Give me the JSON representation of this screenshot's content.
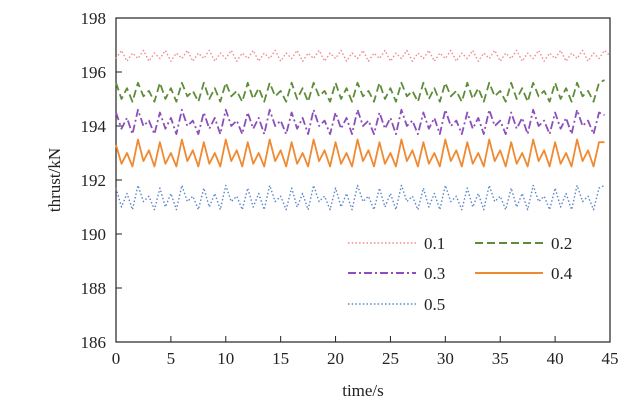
{
  "chart_data": {
    "type": "line",
    "xlabel": "time/s",
    "ylabel": "thrust/kN",
    "xlim": [
      0,
      45
    ],
    "ylim": [
      186,
      198
    ],
    "xticks": [
      0,
      5,
      10,
      15,
      20,
      25,
      30,
      35,
      40,
      45
    ],
    "yticks": [
      186,
      188,
      190,
      192,
      194,
      196,
      198
    ],
    "grid": false,
    "legend_position": "lower-right",
    "x_step": 0.5,
    "series": [
      {
        "name": "0.1",
        "color": "#f08a8a",
        "dash": "dotted",
        "values": [
          196.5,
          196.8,
          196.4,
          196.7,
          196.5,
          196.8,
          196.4,
          196.7,
          196.5,
          196.8,
          196.4,
          196.7,
          196.5,
          196.8,
          196.4,
          196.7,
          196.5,
          196.8,
          196.4,
          196.7,
          196.5,
          196.8,
          196.4,
          196.7,
          196.5,
          196.8,
          196.4,
          196.7,
          196.5,
          196.8,
          196.4,
          196.7,
          196.5,
          196.8,
          196.4,
          196.7,
          196.5,
          196.8,
          196.4,
          196.7,
          196.5,
          196.8,
          196.4,
          196.7,
          196.5,
          196.8,
          196.4,
          196.7,
          196.5,
          196.8,
          196.4,
          196.7,
          196.5,
          196.8,
          196.4,
          196.7,
          196.5,
          196.8,
          196.4,
          196.7,
          196.5,
          196.8,
          196.4,
          196.7,
          196.5,
          196.8,
          196.4,
          196.7,
          196.5,
          196.8,
          196.4,
          196.7,
          196.5,
          196.8,
          196.4,
          196.7,
          196.5,
          196.8,
          196.4,
          196.7,
          196.5,
          196.8,
          196.4,
          196.7,
          196.5,
          196.8,
          196.4,
          196.7,
          196.5,
          196.8,
          196.6
        ]
      },
      {
        "name": "0.2",
        "color": "#5e8c3a",
        "dash": "dashed",
        "values": [
          195.6,
          195.0,
          195.4,
          194.9,
          195.6,
          195.1,
          195.3,
          194.9,
          195.6,
          195.0,
          195.4,
          194.9,
          195.6,
          195.1,
          195.3,
          194.9,
          195.6,
          195.0,
          195.4,
          194.9,
          195.6,
          195.1,
          195.3,
          194.9,
          195.6,
          195.0,
          195.4,
          194.9,
          195.6,
          195.1,
          195.3,
          194.9,
          195.6,
          195.0,
          195.4,
          194.9,
          195.6,
          195.1,
          195.3,
          194.9,
          195.6,
          195.0,
          195.4,
          194.9,
          195.6,
          195.1,
          195.3,
          194.9,
          195.6,
          195.0,
          195.4,
          194.9,
          195.6,
          195.1,
          195.3,
          194.9,
          195.6,
          195.0,
          195.4,
          194.9,
          195.6,
          195.1,
          195.3,
          194.9,
          195.6,
          195.0,
          195.4,
          194.9,
          195.6,
          195.1,
          195.3,
          194.9,
          195.6,
          195.0,
          195.4,
          194.9,
          195.6,
          195.1,
          195.3,
          194.9,
          195.6,
          195.0,
          195.4,
          194.9,
          195.6,
          195.1,
          195.3,
          194.9,
          195.6,
          195.7
        ]
      },
      {
        "name": "0.3",
        "color": "#8a4fb8",
        "dash": "dashdot",
        "values": [
          194.5,
          193.9,
          194.3,
          193.7,
          194.6,
          194.0,
          194.2,
          193.7,
          194.5,
          193.9,
          194.3,
          193.7,
          194.6,
          194.0,
          194.2,
          193.7,
          194.5,
          193.9,
          194.3,
          193.7,
          194.6,
          194.0,
          194.2,
          193.7,
          194.5,
          193.9,
          194.3,
          193.7,
          194.6,
          194.0,
          194.2,
          193.7,
          194.5,
          193.9,
          194.3,
          193.7,
          194.6,
          194.0,
          194.2,
          193.7,
          194.5,
          193.9,
          194.3,
          193.7,
          194.6,
          194.0,
          194.2,
          193.7,
          194.5,
          193.9,
          194.3,
          193.7,
          194.6,
          194.0,
          194.2,
          193.7,
          194.5,
          193.9,
          194.3,
          193.7,
          194.6,
          194.0,
          194.2,
          193.7,
          194.5,
          193.9,
          194.3,
          193.7,
          194.6,
          194.0,
          194.2,
          193.7,
          194.5,
          193.9,
          194.3,
          193.7,
          194.6,
          194.0,
          194.2,
          193.7,
          194.5,
          193.9,
          194.3,
          193.7,
          194.6,
          194.0,
          194.2,
          193.7,
          194.5,
          194.4
        ]
      },
      {
        "name": "0.4",
        "color": "#f08a32",
        "dash": "solid",
        "values": [
          193.3,
          192.6,
          193.0,
          192.5,
          193.5,
          192.7,
          193.1,
          192.5,
          193.4,
          192.6,
          193.0,
          192.5,
          193.5,
          192.7,
          193.1,
          192.5,
          193.4,
          192.6,
          193.0,
          192.5,
          193.5,
          192.7,
          193.1,
          192.5,
          193.4,
          192.6,
          193.0,
          192.5,
          193.5,
          192.7,
          193.1,
          192.5,
          193.4,
          192.6,
          193.0,
          192.5,
          193.5,
          192.7,
          193.1,
          192.5,
          193.4,
          192.6,
          193.0,
          192.5,
          193.5,
          192.7,
          193.1,
          192.5,
          193.4,
          192.6,
          193.0,
          192.5,
          193.5,
          192.7,
          193.1,
          192.5,
          193.4,
          192.6,
          193.0,
          192.5,
          193.5,
          192.7,
          193.1,
          192.5,
          193.4,
          192.6,
          193.0,
          192.5,
          193.5,
          192.7,
          193.1,
          192.5,
          193.4,
          192.6,
          193.0,
          192.5,
          193.5,
          192.7,
          193.1,
          192.5,
          193.4,
          192.6,
          193.0,
          192.5,
          193.5,
          192.7,
          193.1,
          192.5,
          193.4,
          193.4
        ]
      },
      {
        "name": "0.5",
        "color": "#5b86c9",
        "dash": "dotted",
        "values": [
          191.7,
          191.0,
          191.5,
          190.9,
          191.8,
          191.2,
          191.4,
          190.9,
          191.7,
          191.0,
          191.5,
          190.9,
          191.8,
          191.2,
          191.4,
          190.9,
          191.7,
          191.0,
          191.5,
          190.9,
          191.8,
          191.2,
          191.4,
          190.9,
          191.7,
          191.0,
          191.5,
          190.9,
          191.8,
          191.2,
          191.4,
          190.9,
          191.7,
          191.0,
          191.5,
          190.9,
          191.8,
          191.2,
          191.4,
          190.9,
          191.7,
          191.0,
          191.5,
          190.9,
          191.8,
          191.2,
          191.4,
          190.9,
          191.7,
          191.0,
          191.5,
          190.9,
          191.8,
          191.2,
          191.4,
          190.9,
          191.7,
          191.0,
          191.5,
          190.9,
          191.8,
          191.2,
          191.4,
          190.9,
          191.7,
          191.0,
          191.5,
          190.9,
          191.8,
          191.2,
          191.4,
          190.9,
          191.7,
          191.0,
          191.5,
          190.9,
          191.8,
          191.2,
          191.4,
          190.9,
          191.7,
          191.0,
          191.5,
          190.9,
          191.8,
          191.2,
          191.4,
          190.9,
          191.7,
          191.8
        ]
      }
    ]
  }
}
